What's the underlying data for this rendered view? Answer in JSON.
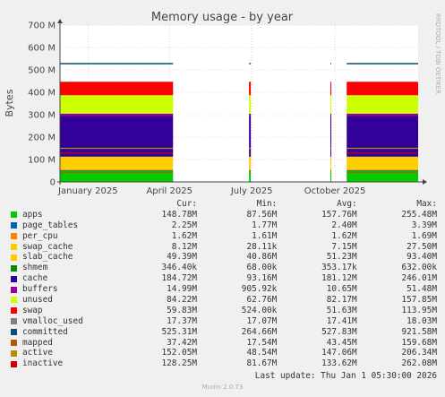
{
  "chart_data": {
    "type": "area",
    "title": "Memory usage - by year",
    "ylabel": "Bytes",
    "ylim": [
      0,
      700
    ],
    "y_unit": "M",
    "yticks": [
      0,
      100,
      200,
      300,
      400,
      500,
      600,
      700
    ],
    "ytick_labels": [
      "0",
      "100 M",
      "200 M",
      "300 M",
      "400 M",
      "500 M",
      "600 M",
      "700 M"
    ],
    "xticks": [
      {
        "date": "2025-01-01",
        "label": "January 2025"
      },
      {
        "date": "2025-04-01",
        "label": "April 2025"
      },
      {
        "date": "2025-07-01",
        "label": "July 2025"
      },
      {
        "date": "2025-10-01",
        "label": "October 2025"
      }
    ],
    "x_range": [
      "2024-12-01",
      "2026-01-01"
    ],
    "grid": true,
    "stacked": true,
    "segments": [
      {
        "from": "2024-12-01",
        "to": "2025-04-05"
      },
      {
        "from": "2025-06-28",
        "to": "2025-06-30"
      },
      {
        "from": "2025-09-26",
        "to": "2025-09-27"
      },
      {
        "from": "2025-10-14",
        "to": "2026-01-01"
      }
    ],
    "series": [
      {
        "name": "apps",
        "color": "#00cc00",
        "level": 50
      },
      {
        "name": "page_tables",
        "color": "#0066b3",
        "level": 2
      },
      {
        "name": "per_cpu",
        "color": "#ff8000",
        "level": 2
      },
      {
        "name": "swap_cache",
        "color": "#ffcc00",
        "level": 7
      },
      {
        "name": "slab_cache",
        "color": "#ffcc00",
        "level": 51
      },
      {
        "name": "shmem",
        "color": "#008f00",
        "level": 1
      },
      {
        "name": "cache",
        "color": "#330099",
        "level": 181
      },
      {
        "name": "buffers",
        "color": "#990099",
        "level": 11
      },
      {
        "name": "unused",
        "color": "#ccff00",
        "level": 82
      },
      {
        "name": "swap",
        "color": "#ff0000",
        "level": 60
      },
      {
        "name": "vmalloc_used",
        "color": "#808080"
      },
      {
        "name": "committed",
        "color": "#005080",
        "level": 528
      },
      {
        "name": "mapped",
        "color": "#b35a00"
      },
      {
        "name": "active",
        "color": "#b38f00"
      },
      {
        "name": "inactive",
        "color": "#cc0000"
      }
    ],
    "lines": [
      {
        "name": "active",
        "level": 150
      },
      {
        "name": "inactive",
        "level": 128
      },
      {
        "name": "mapped",
        "level": 43
      }
    ],
    "legend_placement": "bottom"
  },
  "legend": {
    "headers": {
      "cur": "Cur:",
      "min": "Min:",
      "avg": "Avg:",
      "max": "Max:"
    },
    "rows": [
      {
        "name": "apps",
        "color": "#00cc00",
        "cur": "148.78M",
        "min": "87.56M",
        "avg": "157.76M",
        "max": "255.48M"
      },
      {
        "name": "page_tables",
        "color": "#0066b3",
        "cur": "2.25M",
        "min": "1.77M",
        "avg": "2.40M",
        "max": "3.39M"
      },
      {
        "name": "per_cpu",
        "color": "#ff8000",
        "cur": "1.62M",
        "min": "1.61M",
        "avg": "1.62M",
        "max": "1.69M"
      },
      {
        "name": "swap_cache",
        "color": "#ffcc00",
        "cur": "8.12M",
        "min": "28.11k",
        "avg": "7.15M",
        "max": "27.50M"
      },
      {
        "name": "slab_cache",
        "color": "#ffcc00",
        "cur": "49.39M",
        "min": "40.86M",
        "avg": "51.23M",
        "max": "93.40M"
      },
      {
        "name": "shmem",
        "color": "#008f00",
        "cur": "346.40k",
        "min": "68.00k",
        "avg": "353.17k",
        "max": "632.00k"
      },
      {
        "name": "cache",
        "color": "#330099",
        "cur": "184.72M",
        "min": "93.16M",
        "avg": "181.12M",
        "max": "246.01M"
      },
      {
        "name": "buffers",
        "color": "#990099",
        "cur": "14.99M",
        "min": "905.92k",
        "avg": "10.65M",
        "max": "51.48M"
      },
      {
        "name": "unused",
        "color": "#ccff00",
        "cur": "84.22M",
        "min": "62.76M",
        "avg": "82.17M",
        "max": "157.85M"
      },
      {
        "name": "swap",
        "color": "#ff0000",
        "cur": "59.83M",
        "min": "524.00k",
        "avg": "51.63M",
        "max": "113.95M"
      },
      {
        "name": "vmalloc_used",
        "color": "#808080",
        "cur": "17.37M",
        "min": "17.07M",
        "avg": "17.41M",
        "max": "18.03M"
      },
      {
        "name": "committed",
        "color": "#005080",
        "cur": "525.31M",
        "min": "264.66M",
        "avg": "527.83M",
        "max": "921.58M"
      },
      {
        "name": "mapped",
        "color": "#b35a00",
        "cur": "37.42M",
        "min": "17.54M",
        "avg": "43.45M",
        "max": "159.68M"
      },
      {
        "name": "active",
        "color": "#b38f00",
        "cur": "152.05M",
        "min": "48.54M",
        "avg": "147.06M",
        "max": "206.34M"
      },
      {
        "name": "inactive",
        "color": "#cc0000",
        "cur": "128.25M",
        "min": "81.67M",
        "avg": "133.62M",
        "max": "262.08M"
      }
    ]
  },
  "footer": {
    "last_update": "Last update: Thu Jan  1 05:30:00 2026",
    "generator": "Munin 2.0.73",
    "side_label": "RRDTOOL / TOBI OETIKER"
  }
}
